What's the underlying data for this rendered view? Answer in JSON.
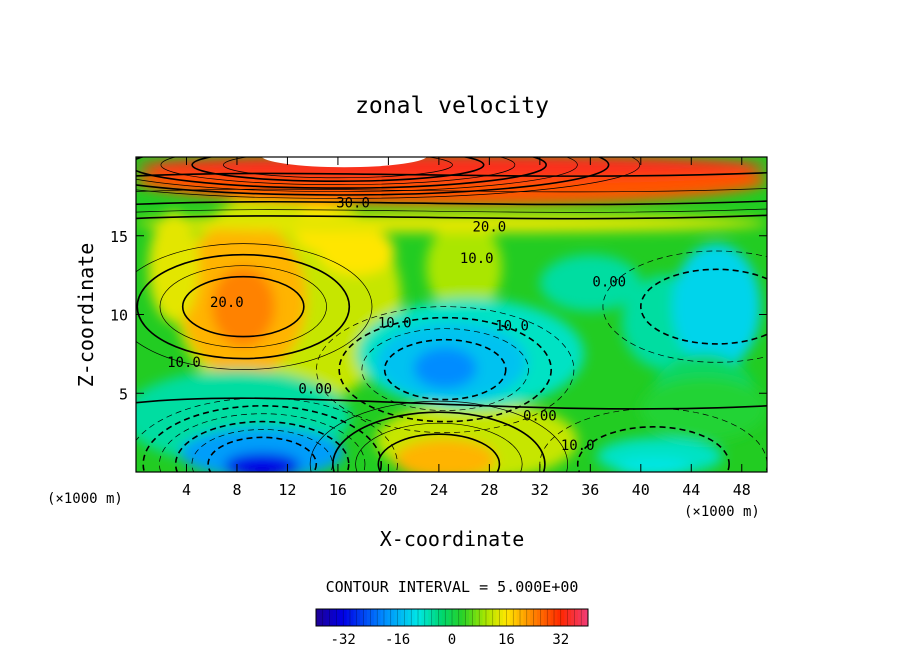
{
  "chart_data": {
    "type": "contour",
    "title": "zonal velocity",
    "xlabel": "X-coordinate",
    "ylabel": "Z-coordinate",
    "x_unit_left": "(×1000 m)",
    "x_unit_right": "(×1000 m)",
    "xlim": [
      0,
      50
    ],
    "ylim": [
      0,
      20
    ],
    "x_ticks": [
      4,
      8,
      12,
      16,
      20,
      24,
      28,
      32,
      36,
      40,
      44,
      48
    ],
    "y_ticks": [
      5,
      10,
      15
    ],
    "contour_interval_text": "CONTOUR INTERVAL = 5.000E+00",
    "contour_labels": [
      {
        "text": "30.0",
        "x": 17.2,
        "z": 17.1
      },
      {
        "text": "20.0",
        "x": 28.0,
        "z": 15.6
      },
      {
        "text": "10.0",
        "x": 27.0,
        "z": 13.6
      },
      {
        "text": "0.00",
        "x": 37.5,
        "z": 12.1
      },
      {
        "text": "20.0",
        "x": 7.2,
        "z": 10.8
      },
      {
        "text": "10.0",
        "x": 20.5,
        "z": 9.5
      },
      {
        "text": "10.0",
        "x": 29.8,
        "z": 9.3
      },
      {
        "text": "10.0",
        "x": 3.8,
        "z": 7.0
      },
      {
        "text": "0.00",
        "x": 14.2,
        "z": 5.3
      },
      {
        "text": "0.00",
        "x": 32.0,
        "z": 3.6
      },
      {
        "text": "10.0",
        "x": 35.0,
        "z": 1.7
      }
    ],
    "features": [
      {
        "kind": "max",
        "value": 38,
        "x": 16,
        "z": 19.5
      },
      {
        "kind": "max",
        "value": 22,
        "x": 8.5,
        "z": 10.5
      },
      {
        "kind": "max",
        "value": 20,
        "x": 24,
        "z": 0.5
      },
      {
        "kind": "min",
        "value": -20,
        "x": 24.5,
        "z": 6.5
      },
      {
        "kind": "min",
        "value": -34,
        "x": 10,
        "z": 0.5
      },
      {
        "kind": "min",
        "value": -12,
        "x": 46,
        "z": 10.5
      },
      {
        "kind": "min",
        "value": -14,
        "x": 41,
        "z": 0.5
      }
    ],
    "colorbar": {
      "min": -40,
      "max": 40,
      "tick_labels": [
        "-32",
        "-16",
        "0",
        "16",
        "32"
      ],
      "tick_values": [
        -32,
        -16,
        0,
        16,
        32
      ]
    }
  }
}
